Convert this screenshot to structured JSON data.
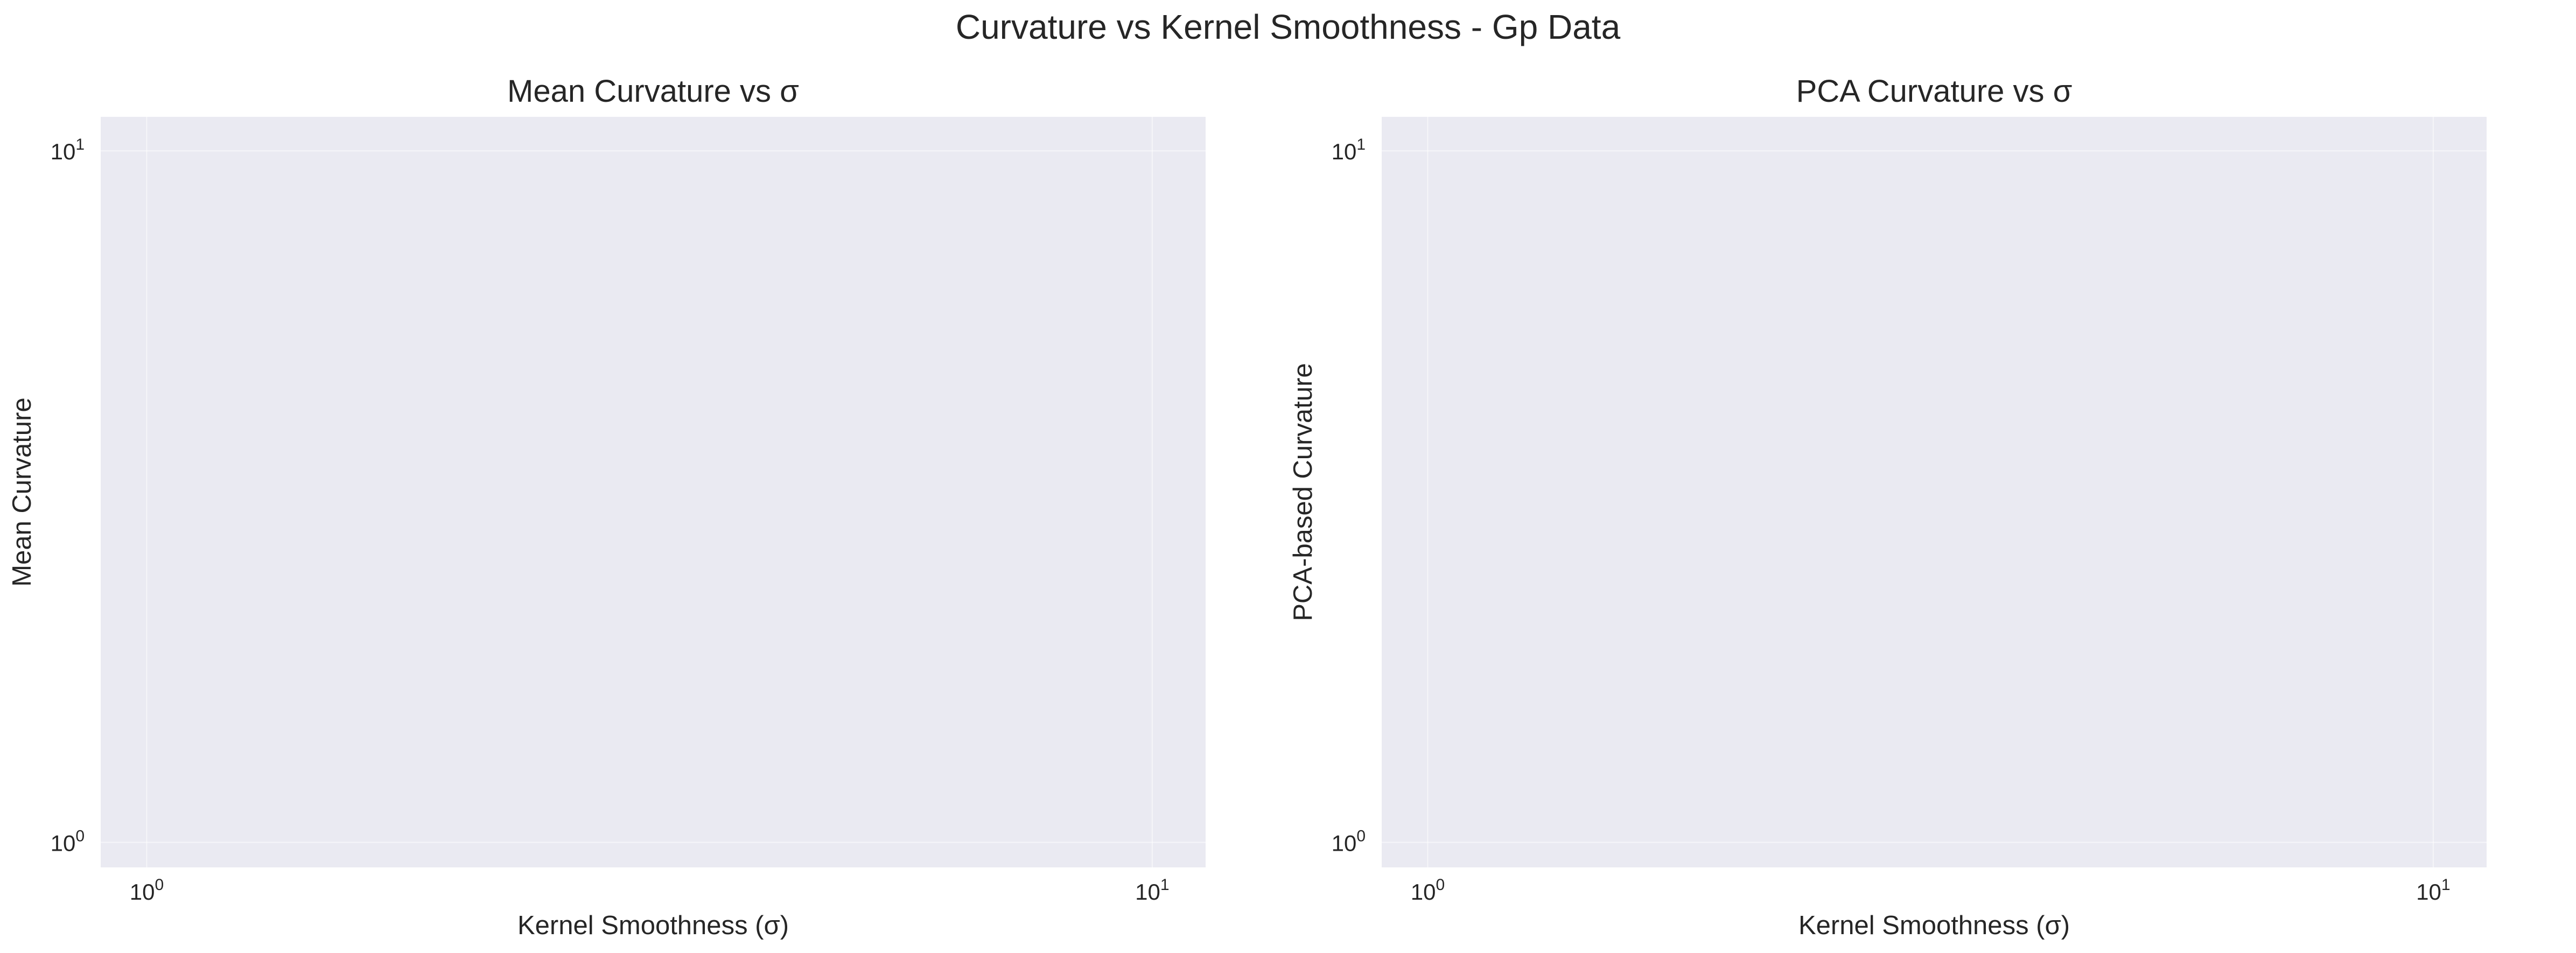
{
  "figure": {
    "suptitle": "Curvature vs Kernel Smoothness - Gp Data"
  },
  "chart_data": [
    {
      "type": "line",
      "title": "Mean Curvature vs σ",
      "xlabel": "Kernel Smoothness (σ)",
      "ylabel": "Mean Curvature",
      "xscale": "log",
      "yscale": "log",
      "xlim": [
        0.9,
        11.3
      ],
      "ylim": [
        0.92,
        11.2
      ],
      "x_ticks": [
        1,
        10
      ],
      "x_tick_labels": [
        {
          "base": "10",
          "exp": "0"
        },
        {
          "base": "10",
          "exp": "1"
        }
      ],
      "y_ticks": [
        1,
        10
      ],
      "y_tick_labels": [
        {
          "base": "10",
          "exp": "0"
        },
        {
          "base": "10",
          "exp": "1"
        }
      ],
      "grid": true,
      "series": []
    },
    {
      "type": "line",
      "title": "PCA Curvature vs σ",
      "xlabel": "Kernel Smoothness (σ)",
      "ylabel": "PCA-based Curvature",
      "xscale": "log",
      "yscale": "log",
      "xlim": [
        0.9,
        11.3
      ],
      "ylim": [
        0.92,
        11.2
      ],
      "x_ticks": [
        1,
        10
      ],
      "x_tick_labels": [
        {
          "base": "10",
          "exp": "0"
        },
        {
          "base": "10",
          "exp": "1"
        }
      ],
      "y_ticks": [
        1,
        10
      ],
      "y_tick_labels": [
        {
          "base": "10",
          "exp": "0"
        },
        {
          "base": "10",
          "exp": "1"
        }
      ],
      "grid": true,
      "series": []
    }
  ]
}
